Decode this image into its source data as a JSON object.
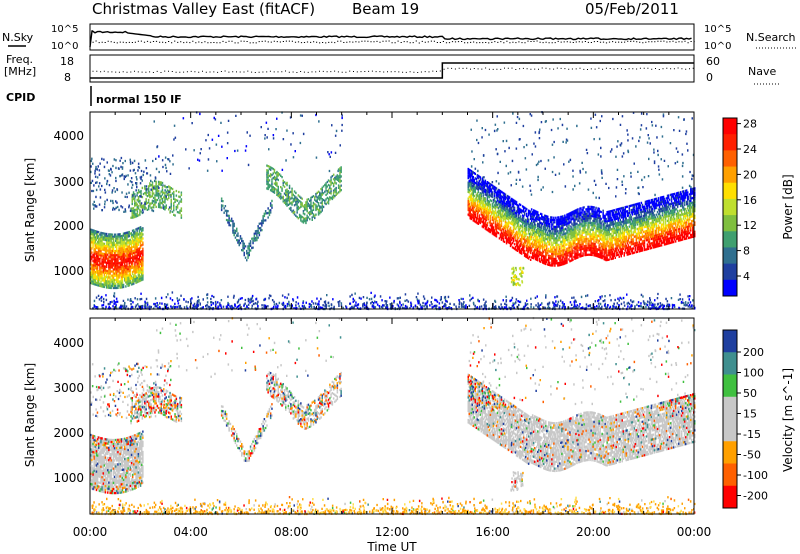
{
  "header": {
    "title": "Christmas Valley East (fitACF)",
    "beam": "Beam 19",
    "date": "05/Feb/2011"
  },
  "noise_panel": {
    "left_label": "N.Sky",
    "right_label": "N.Search",
    "ticks": [
      "10^5",
      "10^0"
    ]
  },
  "freq_panel": {
    "left_label_line1": "Freq.",
    "left_label_line2": "[MHz]",
    "left_ticks": [
      "18",
      "8"
    ],
    "right_label": "Nave",
    "right_ticks": [
      "60",
      "0"
    ]
  },
  "cpid_panel": {
    "label": "CPID",
    "mode": "normal 150 IF"
  },
  "colors": {
    "power": [
      "#0000ff",
      "#1f3f9f",
      "#2f6f8f",
      "#3f9f6f",
      "#7fbf3f",
      "#bfdf2f",
      "#ffdf00",
      "#ffa000",
      "#ff6000",
      "#ff2000",
      "#ff0000"
    ],
    "velocity": [
      "#ff0000",
      "#ff6000",
      "#ffa000",
      "#c8c8c8",
      "#c8c8c8",
      "#40c040",
      "#3f8f8f",
      "#1f3f9f"
    ]
  },
  "chart_data": [
    {
      "type": "heatmap",
      "name": "power",
      "ylabel": "Slant Range [km]",
      "yticks": [
        "1000",
        "2000",
        "3000",
        "4000"
      ],
      "colorbar_label": "Power [dB]",
      "colorbar_ticks": [
        "4",
        "8",
        "12",
        "16",
        "20",
        "24",
        "28"
      ],
      "ylim_km": [
        180,
        4500
      ]
    },
    {
      "type": "heatmap",
      "name": "velocity",
      "ylabel": "Slant Range [km]",
      "yticks": [
        "1000",
        "2000",
        "3000",
        "4000"
      ],
      "colorbar_label": "Velocity [m s^-1]",
      "colorbar_ticks": [
        "200",
        "100",
        "50",
        "15",
        "-15",
        "-50",
        "-100",
        "-200"
      ],
      "ylim_km": [
        180,
        4500
      ]
    }
  ],
  "time_axis": {
    "label": "Time UT",
    "ticks": [
      "00:00",
      "04:00",
      "08:00",
      "12:00",
      "16:00",
      "20:00",
      "00:00"
    ]
  }
}
